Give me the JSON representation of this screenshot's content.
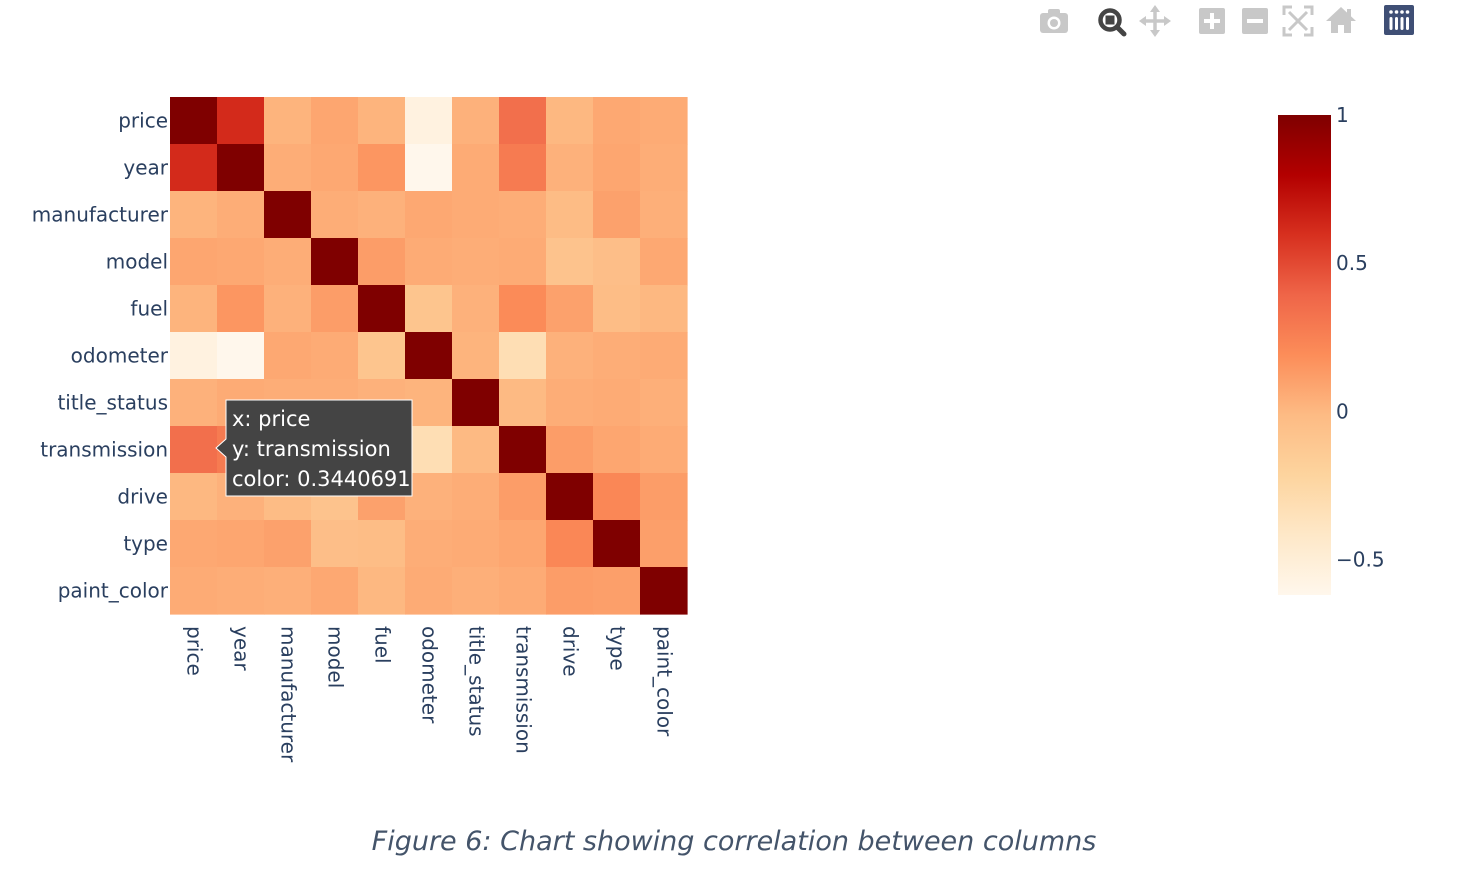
{
  "caption": "Figure 6: Chart showing correlation between columns",
  "toolbar": {
    "buttons": [
      {
        "name": "camera-icon",
        "title": "Download plot as a png"
      },
      {
        "name": "zoom-icon",
        "title": "Zoom"
      },
      {
        "name": "pan-icon",
        "title": "Pan"
      },
      {
        "name": "zoom-in-icon",
        "title": "Zoom in"
      },
      {
        "name": "zoom-out-icon",
        "title": "Zoom out"
      },
      {
        "name": "autoscale-icon",
        "title": "Autoscale"
      },
      {
        "name": "reset-axes-icon",
        "title": "Reset axes"
      },
      {
        "name": "plotly-logo-icon",
        "title": "Produced with Plotly"
      }
    ],
    "active_color": "#444444",
    "inactive_color": "#c8c8c8",
    "logo_color": "#3f4f75"
  },
  "tooltip": {
    "line1": "x: price",
    "line2": "y: transmission",
    "line3": "color: 0.3440691",
    "x": "price",
    "y": "transmission",
    "background": "#444444"
  },
  "chart_data": {
    "type": "heatmap",
    "title": "",
    "x": [
      "price",
      "year",
      "manufacturer",
      "model",
      "fuel",
      "odometer",
      "title_status",
      "transmission",
      "drive",
      "type",
      "paint_color"
    ],
    "y": [
      "price",
      "year",
      "manufacturer",
      "model",
      "fuel",
      "odometer",
      "title_status",
      "transmission",
      "drive",
      "type",
      "paint_color"
    ],
    "z": [
      [
        1.0,
        0.62,
        0.02,
        0.08,
        0.02,
        -0.55,
        0.03,
        0.34,
        0.0,
        0.07,
        0.06
      ],
      [
        0.62,
        1.0,
        0.05,
        0.07,
        0.15,
        -0.62,
        0.06,
        0.28,
        0.03,
        0.08,
        0.05
      ],
      [
        0.02,
        0.05,
        1.0,
        0.05,
        0.03,
        0.07,
        0.06,
        0.05,
        -0.02,
        0.1,
        0.04
      ],
      [
        0.08,
        0.07,
        0.05,
        1.0,
        0.12,
        0.06,
        0.05,
        0.06,
        -0.08,
        -0.04,
        0.07
      ],
      [
        0.02,
        0.15,
        0.03,
        0.12,
        1.0,
        -0.09,
        0.03,
        0.2,
        0.1,
        -0.03,
        0.0
      ],
      [
        -0.55,
        -0.62,
        0.07,
        0.06,
        -0.09,
        1.0,
        0.02,
        -0.32,
        0.03,
        0.05,
        0.06
      ],
      [
        0.03,
        0.06,
        0.05,
        0.05,
        0.03,
        0.02,
        1.0,
        -0.01,
        0.05,
        0.06,
        0.04
      ],
      [
        0.34,
        0.28,
        0.05,
        0.06,
        0.2,
        -0.32,
        -0.01,
        1.0,
        0.12,
        0.08,
        0.06
      ],
      [
        0.0,
        0.03,
        -0.02,
        -0.08,
        0.1,
        0.03,
        0.05,
        0.12,
        1.0,
        0.22,
        0.12
      ],
      [
        0.07,
        0.08,
        0.1,
        -0.04,
        -0.03,
        0.05,
        0.06,
        0.08,
        0.22,
        1.0,
        0.11
      ],
      [
        0.06,
        0.05,
        0.04,
        0.07,
        0.0,
        0.06,
        0.04,
        0.06,
        0.12,
        0.11,
        1.0
      ]
    ],
    "zmin": -0.62,
    "zmax": 1.0,
    "colorscale": [
      [
        0.0,
        "#fff7ec"
      ],
      [
        0.125,
        "#fee8c8"
      ],
      [
        0.25,
        "#fdd49e"
      ],
      [
        0.375,
        "#fdbb84"
      ],
      [
        0.5,
        "#fc8d59"
      ],
      [
        0.625,
        "#ef6548"
      ],
      [
        0.75,
        "#d7301f"
      ],
      [
        0.875,
        "#b30000"
      ],
      [
        1.0,
        "#7f0000"
      ]
    ],
    "colorbar": {
      "ticks": [
        1,
        0.5,
        0,
        -0.5
      ],
      "tick_labels": [
        "1",
        "0.5",
        "0",
        "−0.5"
      ]
    },
    "grid": false,
    "legend": "colorbar-right"
  }
}
